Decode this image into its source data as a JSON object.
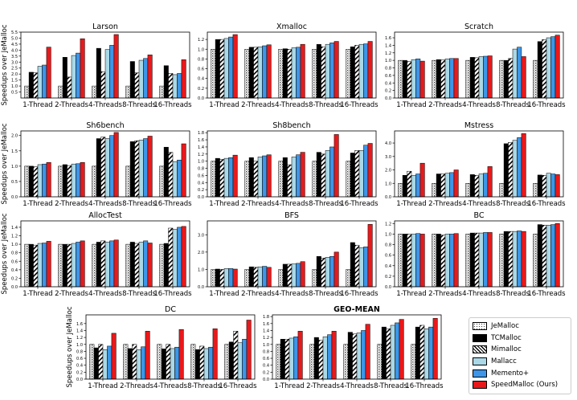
{
  "figure": {
    "ylabel": "Speedups over JeMalloc"
  },
  "legend": {
    "placement": "bottom-right",
    "items": [
      {
        "name": "JeMalloc",
        "color": "#ffffff",
        "pattern": "dots"
      },
      {
        "name": "TCMalloc",
        "color": "#000000",
        "pattern": "solid"
      },
      {
        "name": "Mimalloc",
        "color": "#ffffff",
        "pattern": "hatch"
      },
      {
        "name": "Mallacc",
        "color": "#aad8e6",
        "pattern": "solid"
      },
      {
        "name": "Memento+",
        "color": "#3d96e8",
        "pattern": "solid"
      },
      {
        "name": "SpeedMalloc (Ours)",
        "color": "#e8191b",
        "pattern": "solid"
      }
    ]
  },
  "chart_data": [
    {
      "type": "bar",
      "title": "Larson",
      "bold": false,
      "categories": [
        "1-Thread",
        "2-Threads",
        "4-Threads",
        "8-Threads",
        "16-Threads"
      ],
      "ylim": [
        0,
        5.5
      ],
      "yticks": [
        0.5,
        1.0,
        1.5,
        2.0,
        2.5,
        3.0,
        3.5,
        4.0,
        4.5,
        5.0,
        5.5
      ],
      "ylabel": "Speedups over JeMalloc",
      "series": [
        {
          "name": "JeMalloc",
          "values": [
            1.0,
            1.0,
            1.0,
            1.0,
            1.0
          ]
        },
        {
          "name": "TCMalloc",
          "values": [
            2.15,
            3.4,
            4.15,
            3.05,
            2.7
          ]
        },
        {
          "name": "Mimalloc",
          "values": [
            2.1,
            1.75,
            2.2,
            2.1,
            2.05
          ]
        },
        {
          "name": "Mallacc",
          "values": [
            2.65,
            3.55,
            4.05,
            3.15,
            1.95
          ]
        },
        {
          "name": "Memento+",
          "values": [
            2.75,
            3.75,
            4.4,
            3.3,
            2.05
          ]
        },
        {
          "name": "SpeedMalloc (Ours)",
          "values": [
            4.25,
            4.95,
            5.3,
            3.6,
            3.2
          ]
        }
      ]
    },
    {
      "type": "bar",
      "title": "Xmalloc",
      "bold": false,
      "categories": [
        "1-Thread",
        "2-Threads",
        "4-Threads",
        "8-Threads",
        "16-Threads"
      ],
      "ylim": [
        0,
        1.35
      ],
      "yticks": [
        0.0,
        0.2,
        0.4,
        0.6,
        0.8,
        1.0,
        1.2
      ],
      "ylabel": "",
      "series": [
        {
          "name": "JeMalloc",
          "values": [
            1.0,
            1.0,
            1.0,
            1.0,
            1.0
          ]
        },
        {
          "name": "TCMalloc",
          "values": [
            1.2,
            1.04,
            1.01,
            1.1,
            1.05
          ]
        },
        {
          "name": "Mimalloc",
          "values": [
            1.2,
            1.04,
            1.0,
            1.05,
            1.08
          ]
        },
        {
          "name": "Mallacc",
          "values": [
            1.22,
            1.05,
            1.03,
            1.1,
            1.1
          ]
        },
        {
          "name": "Memento+",
          "values": [
            1.25,
            1.07,
            1.04,
            1.13,
            1.11
          ]
        },
        {
          "name": "SpeedMalloc (Ours)",
          "values": [
            1.3,
            1.09,
            1.1,
            1.16,
            1.16
          ]
        }
      ]
    },
    {
      "type": "bar",
      "title": "Scratch",
      "bold": false,
      "categories": [
        "1-Thread",
        "2-Threads",
        "4-Threads",
        "8-Threads",
        "16-Threads"
      ],
      "ylim": [
        0,
        1.75
      ],
      "yticks": [
        0.0,
        0.2,
        0.4,
        0.6,
        0.8,
        1.0,
        1.2,
        1.4,
        1.6
      ],
      "ylabel": "",
      "series": [
        {
          "name": "JeMalloc",
          "values": [
            1.0,
            1.0,
            1.0,
            1.0,
            1.0
          ]
        },
        {
          "name": "TCMalloc",
          "values": [
            1.0,
            1.02,
            1.08,
            1.0,
            1.5
          ]
        },
        {
          "name": "Mimalloc",
          "values": [
            0.97,
            1.01,
            1.07,
            1.05,
            1.55
          ]
        },
        {
          "name": "Mallacc",
          "values": [
            1.02,
            1.04,
            1.1,
            1.3,
            1.6
          ]
        },
        {
          "name": "Memento+",
          "values": [
            1.04,
            1.05,
            1.11,
            1.35,
            1.63
          ]
        },
        {
          "name": "SpeedMalloc (Ours)",
          "values": [
            0.98,
            1.05,
            1.12,
            1.1,
            1.67
          ]
        }
      ]
    },
    {
      "type": "bar",
      "title": "Sh6bench",
      "bold": false,
      "categories": [
        "1-Thread",
        "2-Threads",
        "4-Threads",
        "8-Threads",
        "16-Threads"
      ],
      "ylim": [
        0,
        2.15
      ],
      "yticks": [
        0.0,
        0.5,
        1.0,
        1.5,
        2.0
      ],
      "ylabel": "Speedups over JeMalloc",
      "series": [
        {
          "name": "JeMalloc",
          "values": [
            1.0,
            1.0,
            1.0,
            1.0,
            1.0
          ]
        },
        {
          "name": "TCMalloc",
          "values": [
            1.0,
            1.05,
            1.9,
            1.8,
            1.62
          ]
        },
        {
          "name": "Mimalloc",
          "values": [
            0.98,
            1.02,
            1.95,
            1.83,
            1.45
          ]
        },
        {
          "name": "Mallacc",
          "values": [
            1.05,
            1.07,
            1.9,
            1.85,
            1.15
          ]
        },
        {
          "name": "Memento+",
          "values": [
            1.07,
            1.08,
            2.0,
            1.9,
            1.2
          ]
        },
        {
          "name": "SpeedMalloc (Ours)",
          "values": [
            1.12,
            1.12,
            2.1,
            1.98,
            1.73
          ]
        }
      ]
    },
    {
      "type": "bar",
      "title": "Sh8bench",
      "bold": false,
      "categories": [
        "1-Thread",
        "2-Threads",
        "4-Threads",
        "8-Threads",
        "16-Threads"
      ],
      "ylim": [
        0,
        1.85
      ],
      "yticks": [
        0.0,
        0.2,
        0.4,
        0.6,
        0.8,
        1.0,
        1.2,
        1.4,
        1.6,
        1.8
      ],
      "ylabel": "",
      "series": [
        {
          "name": "JeMalloc",
          "values": [
            1.0,
            1.0,
            1.0,
            1.0,
            1.0
          ]
        },
        {
          "name": "TCMalloc",
          "values": [
            1.08,
            1.1,
            1.1,
            1.25,
            1.23
          ]
        },
        {
          "name": "Mimalloc",
          "values": [
            1.05,
            1.0,
            0.9,
            1.2,
            1.3
          ]
        },
        {
          "name": "Mallacc",
          "values": [
            1.08,
            1.12,
            1.12,
            1.3,
            1.3
          ]
        },
        {
          "name": "Memento+",
          "values": [
            1.1,
            1.15,
            1.18,
            1.4,
            1.45
          ]
        },
        {
          "name": "SpeedMalloc (Ours)",
          "values": [
            1.17,
            1.18,
            1.25,
            1.75,
            1.5
          ]
        }
      ]
    },
    {
      "type": "bar",
      "title": "Mstress",
      "bold": false,
      "categories": [
        "1-Thread",
        "2-Threads",
        "4-Threads",
        "8-Threads",
        "16-Threads"
      ],
      "ylim": [
        0,
        4.9
      ],
      "yticks": [
        0.0,
        1.0,
        2.0,
        3.0,
        4.0
      ],
      "ylabel": "",
      "series": [
        {
          "name": "JeMalloc",
          "values": [
            1.0,
            1.0,
            1.0,
            1.0,
            1.0
          ]
        },
        {
          "name": "TCMalloc",
          "values": [
            1.6,
            1.7,
            1.65,
            3.95,
            1.62
          ]
        },
        {
          "name": "Mimalloc",
          "values": [
            1.9,
            1.7,
            1.6,
            4.05,
            1.6
          ]
        },
        {
          "name": "Mallacc",
          "values": [
            1.6,
            1.75,
            1.7,
            4.2,
            1.75
          ]
        },
        {
          "name": "Memento+",
          "values": [
            1.7,
            1.8,
            1.75,
            4.4,
            1.7
          ]
        },
        {
          "name": "SpeedMalloc (Ours)",
          "values": [
            2.5,
            2.0,
            2.25,
            4.7,
            1.65
          ]
        }
      ]
    },
    {
      "type": "bar",
      "title": "AllocTest",
      "bold": false,
      "categories": [
        "1-Thread",
        "2-Threads",
        "4-Threads",
        "8-Threads",
        "16-Threads"
      ],
      "ylim": [
        0,
        1.55
      ],
      "yticks": [
        0.0,
        0.2,
        0.4,
        0.6,
        0.8,
        1.0,
        1.2,
        1.4
      ],
      "ylabel": "Speedups over JeMalloc",
      "series": [
        {
          "name": "JeMalloc",
          "values": [
            1.0,
            1.0,
            1.0,
            1.0,
            1.0
          ]
        },
        {
          "name": "TCMalloc",
          "values": [
            1.0,
            1.0,
            1.05,
            1.05,
            1.02
          ]
        },
        {
          "name": "Mimalloc",
          "values": [
            0.98,
            1.0,
            1.08,
            1.02,
            1.38
          ]
        },
        {
          "name": "Mallacc",
          "values": [
            1.02,
            1.02,
            1.05,
            1.05,
            1.35
          ]
        },
        {
          "name": "Memento+",
          "values": [
            1.03,
            1.05,
            1.08,
            1.08,
            1.4
          ]
        },
        {
          "name": "SpeedMalloc (Ours)",
          "values": [
            1.07,
            1.08,
            1.1,
            1.03,
            1.42
          ]
        }
      ]
    },
    {
      "type": "bar",
      "title": "BFS",
      "bold": false,
      "categories": [
        "1-Thread",
        "2-Threads",
        "4-Threads",
        "8-Threads",
        "16-Threads"
      ],
      "ylim": [
        0,
        3.8
      ],
      "yticks": [
        0.0,
        1.0,
        2.0,
        3.0
      ],
      "ylabel": "",
      "series": [
        {
          "name": "JeMalloc",
          "values": [
            1.0,
            1.0,
            1.0,
            1.0,
            1.0
          ]
        },
        {
          "name": "TCMalloc",
          "values": [
            1.02,
            1.15,
            1.3,
            1.75,
            2.55
          ]
        },
        {
          "name": "Mimalloc",
          "values": [
            1.0,
            1.12,
            1.3,
            1.65,
            2.4
          ]
        },
        {
          "name": "Mallacc",
          "values": [
            1.05,
            1.15,
            1.32,
            1.7,
            2.25
          ]
        },
        {
          "name": "Memento+",
          "values": [
            1.05,
            1.18,
            1.35,
            1.75,
            2.3
          ]
        },
        {
          "name": "SpeedMalloc (Ours)",
          "values": [
            1.02,
            1.12,
            1.45,
            2.0,
            3.6
          ]
        }
      ]
    },
    {
      "type": "bar",
      "title": "BC",
      "bold": false,
      "categories": [
        "1-Thread",
        "2-Threads",
        "4-Threads",
        "8-Threads",
        "16-Threads"
      ],
      "ylim": [
        0,
        1.25
      ],
      "yticks": [
        0.0,
        0.2,
        0.4,
        0.6,
        0.8,
        1.0,
        1.2
      ],
      "ylabel": "",
      "series": [
        {
          "name": "JeMalloc",
          "values": [
            1.0,
            1.0,
            1.0,
            1.0,
            1.0
          ]
        },
        {
          "name": "TCMalloc",
          "values": [
            1.0,
            1.0,
            1.02,
            1.05,
            1.18
          ]
        },
        {
          "name": "Mimalloc",
          "values": [
            1.0,
            0.98,
            1.02,
            1.05,
            1.17
          ]
        },
        {
          "name": "Mallacc",
          "values": [
            1.0,
            1.0,
            1.02,
            1.05,
            1.17
          ]
        },
        {
          "name": "Memento+",
          "values": [
            1.01,
            1.0,
            1.03,
            1.06,
            1.18
          ]
        },
        {
          "name": "SpeedMalloc (Ours)",
          "values": [
            1.0,
            1.01,
            1.03,
            1.05,
            1.2
          ]
        }
      ]
    },
    {
      "type": "bar",
      "title": "DC",
      "bold": false,
      "categories": [
        "1-Thread",
        "2-Threads",
        "4-Threads",
        "8-Threads",
        "16-Threads"
      ],
      "ylim": [
        0,
        1.85
      ],
      "yticks": [
        0.0,
        0.2,
        0.4,
        0.6,
        0.8,
        1.0,
        1.2,
        1.4,
        1.6
      ],
      "ylabel": "Speedups over JeMalloc",
      "series": [
        {
          "name": "JeMalloc",
          "values": [
            1.0,
            1.0,
            1.0,
            1.0,
            1.0
          ]
        },
        {
          "name": "TCMalloc",
          "values": [
            0.9,
            0.88,
            0.87,
            0.85,
            1.07
          ]
        },
        {
          "name": "Mimalloc",
          "values": [
            1.0,
            1.0,
            1.0,
            0.95,
            1.38
          ]
        },
        {
          "name": "Mallacc",
          "values": [
            0.85,
            0.85,
            0.88,
            0.88,
            1.05
          ]
        },
        {
          "name": "Memento+",
          "values": [
            0.95,
            0.93,
            0.92,
            0.92,
            1.15
          ]
        },
        {
          "name": "SpeedMalloc (Ours)",
          "values": [
            1.32,
            1.38,
            1.43,
            1.45,
            1.7
          ]
        }
      ]
    },
    {
      "type": "bar",
      "title": "GEO-MEAN",
      "bold": true,
      "categories": [
        "1-Thread",
        "2-Threads",
        "4-Threads",
        "8-Threads",
        "16-Threads"
      ],
      "ylim": [
        0,
        1.85
      ],
      "yticks": [
        0.0,
        0.2,
        0.4,
        0.6,
        0.8,
        1.0,
        1.2,
        1.4,
        1.6,
        1.8
      ],
      "ylabel": "",
      "series": [
        {
          "name": "JeMalloc",
          "values": [
            1.0,
            1.0,
            1.0,
            1.0,
            1.0
          ]
        },
        {
          "name": "TCMalloc",
          "values": [
            1.15,
            1.2,
            1.35,
            1.5,
            1.5
          ]
        },
        {
          "name": "Mimalloc",
          "values": [
            1.15,
            1.12,
            1.3,
            1.45,
            1.55
          ]
        },
        {
          "name": "Mallacc",
          "values": [
            1.18,
            1.22,
            1.33,
            1.55,
            1.45
          ]
        },
        {
          "name": "Memento+",
          "values": [
            1.22,
            1.28,
            1.4,
            1.62,
            1.5
          ]
        },
        {
          "name": "SpeedMalloc (Ours)",
          "values": [
            1.38,
            1.38,
            1.58,
            1.72,
            1.75
          ]
        }
      ]
    }
  ]
}
